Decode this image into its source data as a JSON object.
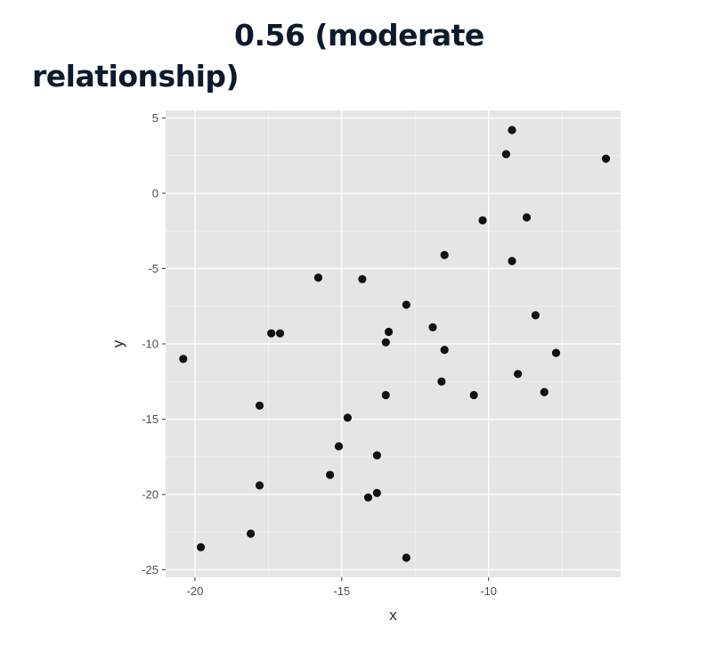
{
  "title": {
    "line1": "0.56 (moderate",
    "line2": "relationship)"
  },
  "colors": {
    "panel": "#e5e5e5",
    "grid_major": "#ffffff",
    "point": "#111111",
    "title": "#0c1a2b"
  },
  "chart_data": {
    "type": "scatter",
    "title": "",
    "xlabel": "x",
    "ylabel": "y",
    "xlim": [
      -21,
      -5.5
    ],
    "ylim": [
      -25.5,
      5.5
    ],
    "xticks": [
      -20,
      -15,
      -10
    ],
    "yticks": [
      5,
      0,
      -5,
      -10,
      -15,
      -20,
      -25
    ],
    "grid": true,
    "legend": "none",
    "points": [
      {
        "x": -20.4,
        "y": -11.0
      },
      {
        "x": -19.8,
        "y": -23.5
      },
      {
        "x": -18.1,
        "y": -22.6
      },
      {
        "x": -17.8,
        "y": -14.1
      },
      {
        "x": -17.8,
        "y": -19.4
      },
      {
        "x": -17.4,
        "y": -9.3
      },
      {
        "x": -17.1,
        "y": -9.3
      },
      {
        "x": -15.8,
        "y": -5.6
      },
      {
        "x": -15.4,
        "y": -18.7
      },
      {
        "x": -15.1,
        "y": -16.8
      },
      {
        "x": -14.8,
        "y": -14.9
      },
      {
        "x": -14.3,
        "y": -5.7
      },
      {
        "x": -14.1,
        "y": -20.2
      },
      {
        "x": -13.8,
        "y": -17.4
      },
      {
        "x": -13.8,
        "y": -19.9
      },
      {
        "x": -13.5,
        "y": -9.9
      },
      {
        "x": -13.4,
        "y": -9.2
      },
      {
        "x": -13.5,
        "y": -13.4
      },
      {
        "x": -12.8,
        "y": -7.4
      },
      {
        "x": -12.8,
        "y": -24.2
      },
      {
        "x": -11.9,
        "y": -8.9
      },
      {
        "x": -11.5,
        "y": -10.4
      },
      {
        "x": -11.5,
        "y": -4.1
      },
      {
        "x": -11.6,
        "y": -12.5
      },
      {
        "x": -10.5,
        "y": -13.4
      },
      {
        "x": -10.2,
        "y": -1.8
      },
      {
        "x": -9.4,
        "y": 2.6
      },
      {
        "x": -9.2,
        "y": 4.2
      },
      {
        "x": -9.2,
        "y": -4.5
      },
      {
        "x": -9.0,
        "y": -12.0
      },
      {
        "x": -8.7,
        "y": -1.6
      },
      {
        "x": -8.4,
        "y": -8.1
      },
      {
        "x": -8.1,
        "y": -13.2
      },
      {
        "x": -7.7,
        "y": -10.6
      },
      {
        "x": -6.0,
        "y": 2.3
      }
    ]
  }
}
